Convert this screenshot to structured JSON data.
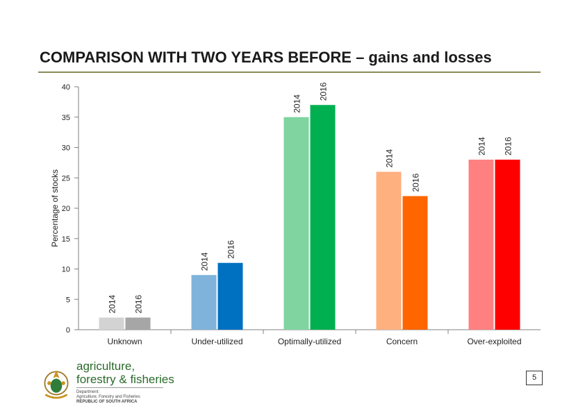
{
  "slide": {
    "title": "COMPARISON WITH TWO YEARS BEFORE – gains and losses",
    "page_number": "5"
  },
  "branding": {
    "line1": "agriculture,",
    "line2": "forestry & fisheries",
    "small1": "Department:",
    "small2": "Agriculture, Forestry and Fisheries",
    "small3": "REPUBLIC OF SOUTH AFRICA"
  },
  "chart_data": {
    "type": "bar",
    "title": "",
    "ylabel": "Percentage of stocks",
    "xlabel": "",
    "ylim": [
      0,
      40
    ],
    "yticks": [
      0,
      5,
      10,
      15,
      20,
      25,
      30,
      35,
      40
    ],
    "grid": false,
    "categories": [
      "Unknown",
      "Under-utilized",
      "Optimally-utilized",
      "Concern",
      "Over-exploited"
    ],
    "series": [
      {
        "name": "2014",
        "values": [
          2,
          9,
          35,
          26,
          28
        ]
      },
      {
        "name": "2016",
        "values": [
          2,
          11,
          37,
          22,
          28
        ]
      }
    ],
    "colors": [
      [
        "#d3d3d3",
        "#a6a6a6"
      ],
      [
        "#7fb3db",
        "#0070c0"
      ],
      [
        "#7fd4a0",
        "#00b050"
      ],
      [
        "#ffb07f",
        "#ff6600"
      ],
      [
        "#ff8080",
        "#ff0000"
      ]
    ]
  }
}
